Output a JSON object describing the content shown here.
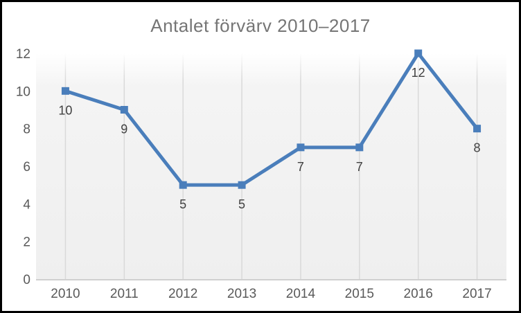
{
  "chart_data": {
    "type": "line",
    "title": "Antalet förvärv 2010–2017",
    "categories": [
      "2010",
      "2011",
      "2012",
      "2013",
      "2014",
      "2015",
      "2016",
      "2017"
    ],
    "values": [
      10,
      9,
      5,
      5,
      7,
      7,
      12,
      8
    ],
    "data_labels": [
      "10",
      "9",
      "5",
      "5",
      "7",
      "7",
      "12",
      "8"
    ],
    "y_tick_labels": [
      "0",
      "2",
      "4",
      "6",
      "8",
      "10",
      "12"
    ],
    "y_tick_values": [
      0,
      2,
      4,
      6,
      8,
      10,
      12
    ],
    "ylim": [
      0,
      12
    ],
    "xlabel": "",
    "ylabel": "",
    "legend": "none",
    "grid": "vertical-only",
    "marker_style": "square",
    "colors": {
      "line": "#4A7EBB",
      "marker": "#4A7EBB",
      "title_text": "#757575",
      "axis_text": "#595959",
      "data_label_text": "#404040",
      "gridline": "#D9D9D9",
      "axis_line": "#C9C9C9",
      "plot_bg_top": "#FFFFFF",
      "plot_bg_mid": "#F4F4F4",
      "plot_bg_bottom": "#EFEFEF",
      "frame_border": "#000000",
      "background": "#FFFFFF"
    }
  }
}
